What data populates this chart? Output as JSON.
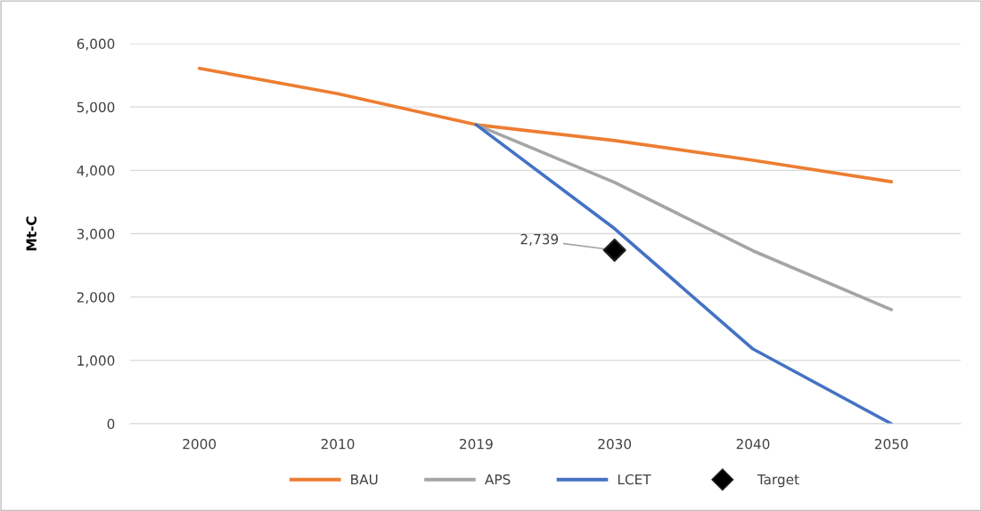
{
  "chart_data": {
    "type": "line",
    "ylabel": "Mt-C",
    "categories": [
      "2000",
      "2010",
      "2019",
      "2030",
      "2040",
      "2050"
    ],
    "series": [
      {
        "name": "BAU",
        "color": "#ed7d31",
        "values": [
          5610,
          5210,
          4720,
          4470,
          4160,
          3820
        ]
      },
      {
        "name": "APS",
        "color": "#a5a5a5",
        "values": [
          null,
          null,
          4720,
          3810,
          2730,
          1800
        ]
      },
      {
        "name": "LCET",
        "color": "#4472c4",
        "values": [
          null,
          null,
          4720,
          3080,
          1180,
          0
        ]
      },
      {
        "name": "Target",
        "type": "scatter",
        "marker": "diamond",
        "color": "#000000",
        "values": [
          null,
          null,
          null,
          2739,
          null,
          null
        ],
        "value_labels": [
          null,
          null,
          null,
          "2,739",
          null,
          null
        ]
      }
    ],
    "ylim": [
      0,
      6000
    ],
    "yticks": [
      {
        "value": 0,
        "label": "0"
      },
      {
        "value": 1000,
        "label": "1,000"
      },
      {
        "value": 2000,
        "label": "2,000"
      },
      {
        "value": 3000,
        "label": "3,000"
      },
      {
        "value": 4000,
        "label": "4,000"
      },
      {
        "value": 5000,
        "label": "5,000"
      },
      {
        "value": 6000,
        "label": "6,000"
      }
    ],
    "grid": "y",
    "legend": "bottom"
  }
}
